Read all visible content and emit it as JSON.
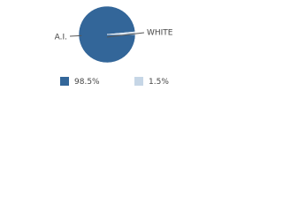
{
  "chart_data": {
    "type": "pie",
    "categories": [
      "A.I.",
      "WHITE"
    ],
    "values": [
      98.5,
      1.5
    ],
    "value_labels": [
      "98.5%",
      "1.5%"
    ],
    "colors": [
      "#336699",
      "#c6d6e6"
    ],
    "legend": "bottom"
  }
}
